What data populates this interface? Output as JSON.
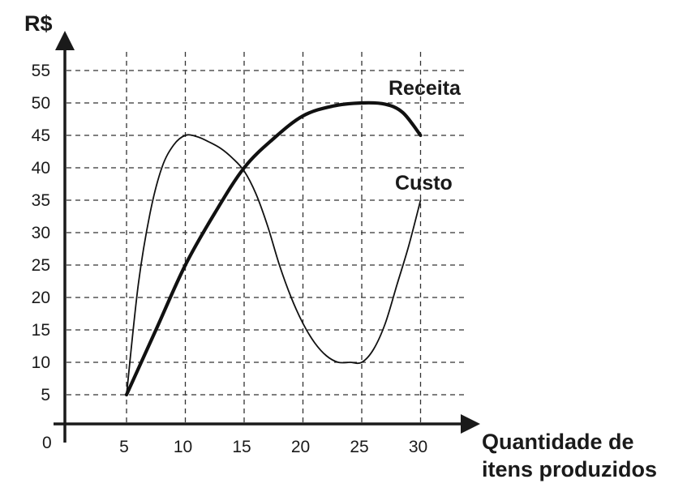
{
  "chart_data": {
    "type": "line",
    "ylabel": "R$",
    "xlabel_lines": [
      "Quantidade de",
      "itens produzidos"
    ],
    "origin_label": "0",
    "xlim": [
      0,
      30
    ],
    "ylim": [
      0,
      55
    ],
    "x_ticks": [
      5,
      10,
      15,
      20,
      25,
      30
    ],
    "y_ticks": [
      5,
      10,
      15,
      20,
      25,
      30,
      35,
      40,
      45,
      50,
      55
    ],
    "grid": true,
    "series": [
      {
        "name": "Receita",
        "style": "thick",
        "x": [
          5,
          7.5,
          10,
          12.5,
          15,
          17.5,
          20,
          22.5,
          25,
          27,
          28.5,
          30
        ],
        "y": [
          5,
          15,
          25,
          33,
          40,
          44.5,
          48,
          49.5,
          50,
          49.8,
          48.5,
          45
        ]
      },
      {
        "name": "Custo",
        "style": "thin",
        "x": [
          5,
          6,
          7,
          8,
          9,
          10,
          11,
          12,
          13,
          14,
          15,
          16,
          17,
          18,
          19,
          20,
          21,
          22,
          23,
          24,
          25,
          26,
          27,
          28,
          29,
          30
        ],
        "y": [
          5,
          22,
          33,
          40,
          43.5,
          45,
          44.8,
          44,
          43,
          41.5,
          39.5,
          36,
          31,
          25,
          20,
          16,
          13,
          11,
          10,
          10,
          10,
          12,
          16,
          22,
          28,
          35
        ]
      }
    ]
  }
}
